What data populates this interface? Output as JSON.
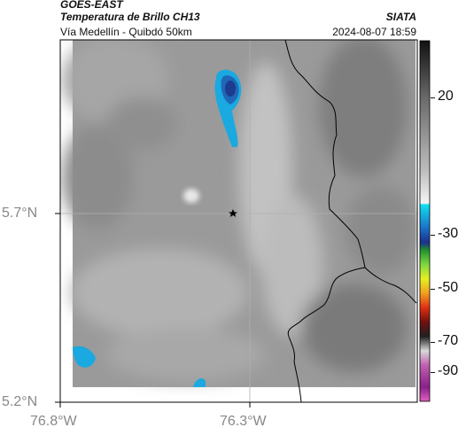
{
  "header": {
    "satellite": "GOES-EAST",
    "product": "Temperatura de Brillo CH13",
    "region": "Vía Medellín - Quibdó 50km",
    "source": "SIATA",
    "datetime": "2024-08-07 18:59"
  },
  "map": {
    "lat_labels": [
      "5.7°N",
      "5.2°N"
    ],
    "lon_labels": [
      "76.8°W",
      "76.3°W"
    ],
    "marker": "star-icon"
  },
  "colorbar": {
    "tick_labels": [
      "20",
      "-30",
      "-50",
      "-70",
      "-90"
    ]
  },
  "colors": {
    "cold_cloud": "#1aa9e0",
    "deep_cloud": "#1d3b8f",
    "border": "#000000"
  }
}
